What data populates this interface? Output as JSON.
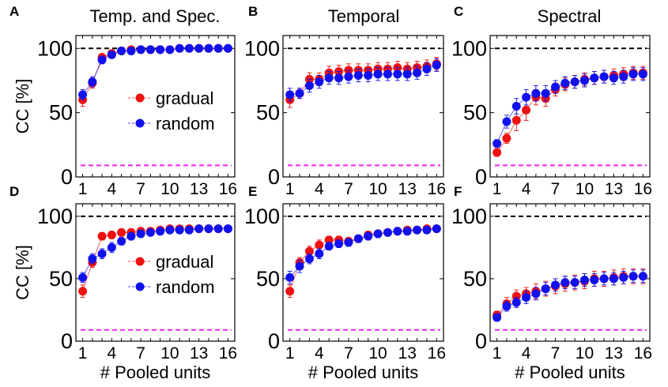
{
  "figure": {
    "ylabel": "CC [%]",
    "xlabel": "# Pooled units"
  },
  "legend": {
    "labels": [
      "gradual",
      "random"
    ],
    "colors": [
      "#ee1111",
      "#1111ee"
    ]
  },
  "colors": {
    "gradual": "#ee1111",
    "random": "#1111ee",
    "ceiling_line": "#000000",
    "chance_line": "#ee22ee"
  },
  "chart_data": [
    {
      "id": "A",
      "letter": "A",
      "title": "Temp. and Spec.",
      "type": "scatter",
      "x": [
        1,
        2,
        3,
        4,
        5,
        6,
        7,
        8,
        9,
        10,
        11,
        12,
        13,
        14,
        15,
        16
      ],
      "xticks": [
        1,
        4,
        7,
        10,
        13,
        16
      ],
      "ylim": [
        0,
        110
      ],
      "yticks": [
        0,
        50,
        100
      ],
      "xlim": [
        0.3,
        16.7
      ],
      "ceiling": 100,
      "chance": 9,
      "series": [
        {
          "name": "gradual",
          "values": [
            60,
            73,
            93,
            96,
            98,
            99,
            99,
            99,
            99,
            99,
            100,
            100,
            100,
            100,
            100,
            100
          ],
          "errors": [
            5,
            4,
            3,
            2,
            1,
            1,
            1,
            1,
            1,
            1,
            1,
            1,
            1,
            1,
            1,
            1
          ]
        },
        {
          "name": "random",
          "values": [
            64,
            74,
            91,
            95,
            98,
            98,
            99,
            99,
            99,
            99,
            100,
            100,
            100,
            100,
            100,
            100
          ],
          "errors": [
            4,
            4,
            3,
            2,
            1,
            1,
            1,
            1,
            1,
            1,
            1,
            1,
            1,
            1,
            1,
            1
          ]
        }
      ]
    },
    {
      "id": "B",
      "letter": "B",
      "title": "Temporal",
      "type": "scatter",
      "x": [
        1,
        2,
        3,
        4,
        5,
        6,
        7,
        8,
        9,
        10,
        11,
        12,
        13,
        14,
        15,
        16
      ],
      "xticks": [
        1,
        4,
        7,
        10,
        13,
        16
      ],
      "ylim": [
        0,
        110
      ],
      "yticks": [
        0,
        50,
        100
      ],
      "xlim": [
        0.3,
        16.7
      ],
      "ceiling": 100,
      "chance": 9,
      "series": [
        {
          "name": "gradual",
          "values": [
            60,
            65,
            76,
            76,
            81,
            82,
            83,
            83,
            83,
            84,
            84,
            85,
            84,
            85,
            86,
            88
          ],
          "errors": [
            6,
            4,
            5,
            5,
            5,
            5,
            5,
            5,
            5,
            5,
            5,
            5,
            5,
            5,
            5,
            5
          ]
        },
        {
          "name": "random",
          "values": [
            64,
            65,
            71,
            74,
            77,
            77,
            78,
            79,
            79,
            80,
            80,
            80,
            80,
            81,
            84,
            87
          ],
          "errors": [
            5,
            4,
            5,
            5,
            5,
            5,
            5,
            5,
            5,
            5,
            5,
            5,
            5,
            5,
            5,
            5
          ]
        }
      ]
    },
    {
      "id": "C",
      "letter": "C",
      "title": "Spectral",
      "type": "scatter",
      "x": [
        1,
        2,
        3,
        4,
        5,
        6,
        7,
        8,
        9,
        10,
        11,
        12,
        13,
        14,
        15,
        16
      ],
      "xticks": [
        1,
        4,
        7,
        10,
        13,
        16
      ],
      "ylim": [
        0,
        110
      ],
      "yticks": [
        0,
        50,
        100
      ],
      "xlim": [
        0.3,
        16.7
      ],
      "ceiling": 100,
      "chance": 9,
      "series": [
        {
          "name": "gradual",
          "values": [
            19,
            30,
            44,
            52,
            62,
            61,
            68,
            72,
            74,
            76,
            77,
            78,
            79,
            80,
            81,
            81
          ],
          "errors": [
            3,
            4,
            8,
            8,
            6,
            6,
            5,
            5,
            5,
            5,
            5,
            5,
            5,
            5,
            5,
            5
          ]
        },
        {
          "name": "random",
          "values": [
            26,
            43,
            55,
            62,
            65,
            65,
            70,
            73,
            74,
            75,
            77,
            78,
            77,
            78,
            80,
            80
          ],
          "errors": [
            3,
            5,
            6,
            6,
            6,
            6,
            5,
            5,
            5,
            5,
            5,
            5,
            5,
            5,
            5,
            5
          ]
        }
      ]
    },
    {
      "id": "D",
      "letter": "D",
      "title": "",
      "type": "scatter",
      "x": [
        1,
        2,
        3,
        4,
        5,
        6,
        7,
        8,
        9,
        10,
        11,
        12,
        13,
        14,
        15,
        16
      ],
      "xticks": [
        1,
        4,
        7,
        10,
        13,
        16
      ],
      "ylim": [
        0,
        110
      ],
      "yticks": [
        0,
        50,
        100
      ],
      "xlim": [
        0.3,
        16.7
      ],
      "ceiling": 100,
      "chance": 9,
      "series": [
        {
          "name": "gradual",
          "values": [
            40,
            63,
            84,
            85,
            87,
            87,
            88,
            88,
            89,
            90,
            90,
            90,
            90,
            90,
            90,
            90
          ],
          "errors": [
            5,
            4,
            3,
            3,
            3,
            3,
            3,
            2,
            2,
            2,
            2,
            2,
            2,
            2,
            2,
            2
          ]
        },
        {
          "name": "random",
          "values": [
            51,
            66,
            70,
            75,
            80,
            84,
            86,
            87,
            88,
            89,
            89,
            89,
            90,
            90,
            90,
            90
          ],
          "errors": [
            4,
            4,
            4,
            4,
            3,
            3,
            3,
            2,
            2,
            2,
            2,
            2,
            2,
            2,
            2,
            2
          ]
        }
      ]
    },
    {
      "id": "E",
      "letter": "E",
      "title": "",
      "type": "scatter",
      "x": [
        1,
        2,
        3,
        4,
        5,
        6,
        7,
        8,
        9,
        10,
        11,
        12,
        13,
        14,
        15,
        16
      ],
      "xticks": [
        1,
        4,
        7,
        10,
        13,
        16
      ],
      "ylim": [
        0,
        110
      ],
      "yticks": [
        0,
        50,
        100
      ],
      "xlim": [
        0.3,
        16.7
      ],
      "ceiling": 100,
      "chance": 9,
      "series": [
        {
          "name": "gradual",
          "values": [
            40,
            63,
            72,
            77,
            81,
            81,
            80,
            82,
            85,
            86,
            87,
            88,
            89,
            89,
            90,
            90
          ],
          "errors": [
            5,
            4,
            4,
            4,
            3,
            3,
            3,
            3,
            3,
            3,
            2,
            2,
            2,
            2,
            2,
            2
          ]
        },
        {
          "name": "random",
          "values": [
            51,
            60,
            66,
            70,
            76,
            78,
            79,
            82,
            84,
            86,
            87,
            88,
            88,
            89,
            89,
            90
          ],
          "errors": [
            5,
            5,
            4,
            4,
            3,
            3,
            3,
            3,
            3,
            3,
            2,
            2,
            2,
            2,
            2,
            2
          ]
        }
      ]
    },
    {
      "id": "F",
      "letter": "F",
      "title": "",
      "type": "scatter",
      "x": [
        1,
        2,
        3,
        4,
        5,
        6,
        7,
        8,
        9,
        10,
        11,
        12,
        13,
        14,
        15,
        16
      ],
      "xticks": [
        1,
        4,
        7,
        10,
        13,
        16
      ],
      "ylim": [
        0,
        110
      ],
      "yticks": [
        0,
        50,
        100
      ],
      "xlim": [
        0.3,
        16.7
      ],
      "ceiling": 100,
      "chance": 9,
      "series": [
        {
          "name": "gradual",
          "values": [
            21,
            30,
            36,
            38,
            40,
            42,
            44,
            46,
            47,
            48,
            50,
            50,
            51,
            52,
            52,
            52
          ],
          "errors": [
            3,
            5,
            5,
            5,
            6,
            6,
            6,
            6,
            6,
            6,
            6,
            6,
            6,
            6,
            6,
            6
          ]
        },
        {
          "name": "random",
          "values": [
            19,
            28,
            31,
            35,
            38,
            42,
            45,
            47,
            47,
            49,
            49,
            50,
            50,
            51,
            52,
            52
          ],
          "errors": [
            3,
            4,
            4,
            5,
            5,
            5,
            5,
            5,
            5,
            5,
            5,
            5,
            5,
            5,
            5,
            5
          ]
        }
      ]
    }
  ]
}
